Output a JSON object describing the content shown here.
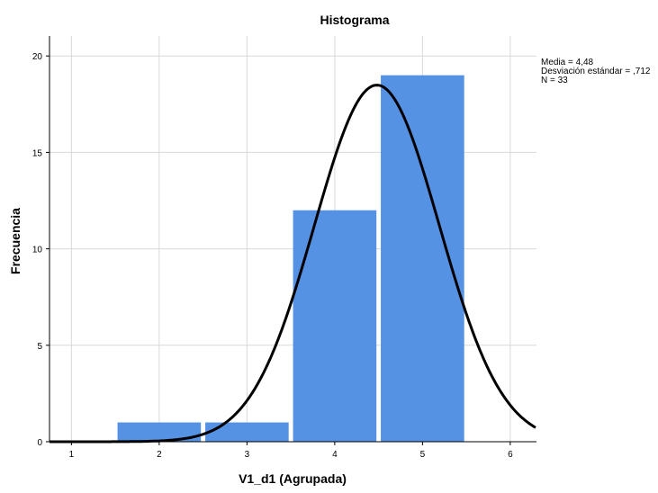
{
  "chart_data": {
    "type": "bar",
    "title": "Histograma",
    "xlabel": "V1_d1 (Agrupada)",
    "ylabel": "Frecuencia",
    "xlim": [
      0.75,
      6.3
    ],
    "ylim": [
      0,
      21
    ],
    "x_ticks": [
      1,
      2,
      3,
      4,
      5,
      6
    ],
    "y_ticks": [
      0,
      5,
      10,
      15,
      20
    ],
    "grid": true,
    "bins": [
      {
        "x": 2,
        "value": 1
      },
      {
        "x": 3,
        "value": 1
      },
      {
        "x": 4,
        "value": 12
      },
      {
        "x": 5,
        "value": 19
      }
    ],
    "bar_width": 0.95,
    "bar_color": "#5592e4",
    "normal_curve": {
      "mean": 4.48,
      "sd": 0.712,
      "n": 33,
      "bin_width": 1,
      "color": "#000000"
    },
    "stats": [
      "Media = 4,48",
      "Desviación estándar = ,712",
      "N = 33"
    ]
  }
}
